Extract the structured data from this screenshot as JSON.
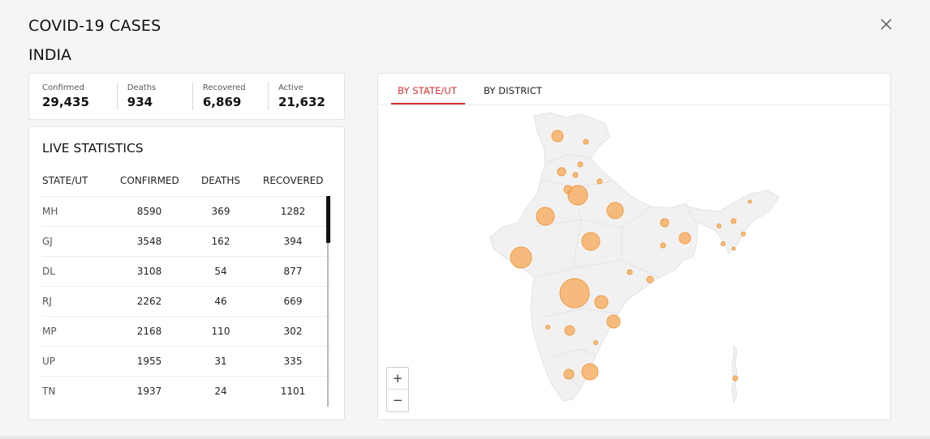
{
  "header": {
    "title": "COVID-19 CASES",
    "subtitle": "INDIA"
  },
  "summary": [
    {
      "label": "Confirmed",
      "value": "29,435"
    },
    {
      "label": "Deaths",
      "value": "934"
    },
    {
      "label": "Recovered",
      "value": "6,869"
    },
    {
      "label": "Active",
      "value": "21,632"
    }
  ],
  "live": {
    "title": "LIVE STATISTICS",
    "columns": [
      "STATE/UT",
      "CONFIRMED",
      "DEATHS",
      "RECOVERED"
    ],
    "rows": [
      {
        "state": "MH",
        "confirmed": "8590",
        "deaths": "369",
        "recovered": "1282"
      },
      {
        "state": "GJ",
        "confirmed": "3548",
        "deaths": "162",
        "recovered": "394"
      },
      {
        "state": "DL",
        "confirmed": "3108",
        "deaths": "54",
        "recovered": "877"
      },
      {
        "state": "RJ",
        "confirmed": "2262",
        "deaths": "46",
        "recovered": "669"
      },
      {
        "state": "MP",
        "confirmed": "2168",
        "deaths": "110",
        "recovered": "302"
      },
      {
        "state": "UP",
        "confirmed": "1955",
        "deaths": "31",
        "recovered": "335"
      },
      {
        "state": "TN",
        "confirmed": "1937",
        "deaths": "24",
        "recovered": "1101"
      }
    ]
  },
  "map": {
    "tabs": [
      {
        "label": "BY STATE/UT",
        "active": true
      },
      {
        "label": "BY DISTRICT",
        "active": false
      }
    ],
    "zoom_in": "+",
    "zoom_out": "−",
    "accent": "#d32f2f",
    "bubble_color": "#f7b267"
  }
}
